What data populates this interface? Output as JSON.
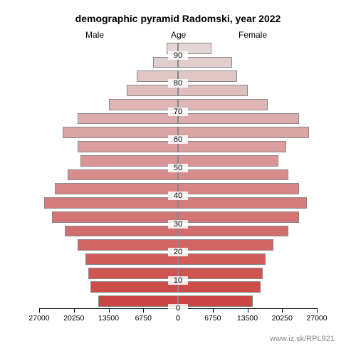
{
  "title": "demographic pyramid Radomski, year 2022",
  "headers": {
    "male": "Male",
    "age": "Age",
    "female": "Female"
  },
  "footer": "www.iz.sk/RPL921",
  "chart": {
    "type": "population-pyramid",
    "background_color": "#ffffff",
    "border_color": "#888888",
    "title_fontsize": 14,
    "label_fontsize": 12,
    "tick_fontsize": 10.5,
    "x_max": 27000,
    "x_ticks": [
      27000,
      20250,
      13500,
      6750,
      0
    ],
    "x_ticks_right": [
      0,
      6750,
      13500,
      20250,
      27000
    ],
    "age_ticks": [
      0,
      10,
      20,
      30,
      40,
      50,
      60,
      70,
      80,
      90
    ],
    "age_range": [
      0,
      95
    ],
    "bar_height_ratio": 0.8,
    "colors": {
      "male_top": "#e4d6d6",
      "male_bottom": "#cc4444",
      "female_top": "#e4d6d6",
      "female_bottom": "#cc4444"
    },
    "male": [
      {
        "age": 90,
        "value": 2200
      },
      {
        "age": 85,
        "value": 4800
      },
      {
        "age": 80,
        "value": 8000
      },
      {
        "age": 75,
        "value": 10000
      },
      {
        "age": 70,
        "value": 13500
      },
      {
        "age": 65,
        "value": 19500
      },
      {
        "age": 60,
        "value": 22500
      },
      {
        "age": 55,
        "value": 19500
      },
      {
        "age": 50,
        "value": 19000
      },
      {
        "age": 45,
        "value": 21500
      },
      {
        "age": 40,
        "value": 24000
      },
      {
        "age": 35,
        "value": 26000
      },
      {
        "age": 30,
        "value": 24500
      },
      {
        "age": 25,
        "value": 22000
      },
      {
        "age": 20,
        "value": 19500
      },
      {
        "age": 15,
        "value": 18000
      },
      {
        "age": 10,
        "value": 17500
      },
      {
        "age": 5,
        "value": 17000
      },
      {
        "age": 0,
        "value": 15500
      }
    ],
    "female": [
      {
        "age": 90,
        "value": 6500
      },
      {
        "age": 85,
        "value": 10500
      },
      {
        "age": 80,
        "value": 11500
      },
      {
        "age": 75,
        "value": 13500
      },
      {
        "age": 70,
        "value": 17500
      },
      {
        "age": 65,
        "value": 23500
      },
      {
        "age": 60,
        "value": 25500
      },
      {
        "age": 55,
        "value": 21000
      },
      {
        "age": 50,
        "value": 19500
      },
      {
        "age": 45,
        "value": 21500
      },
      {
        "age": 40,
        "value": 23500
      },
      {
        "age": 35,
        "value": 25000
      },
      {
        "age": 30,
        "value": 23500
      },
      {
        "age": 25,
        "value": 21500
      },
      {
        "age": 20,
        "value": 18500
      },
      {
        "age": 15,
        "value": 17000
      },
      {
        "age": 10,
        "value": 16500
      },
      {
        "age": 5,
        "value": 16000
      },
      {
        "age": 0,
        "value": 14500
      }
    ]
  }
}
